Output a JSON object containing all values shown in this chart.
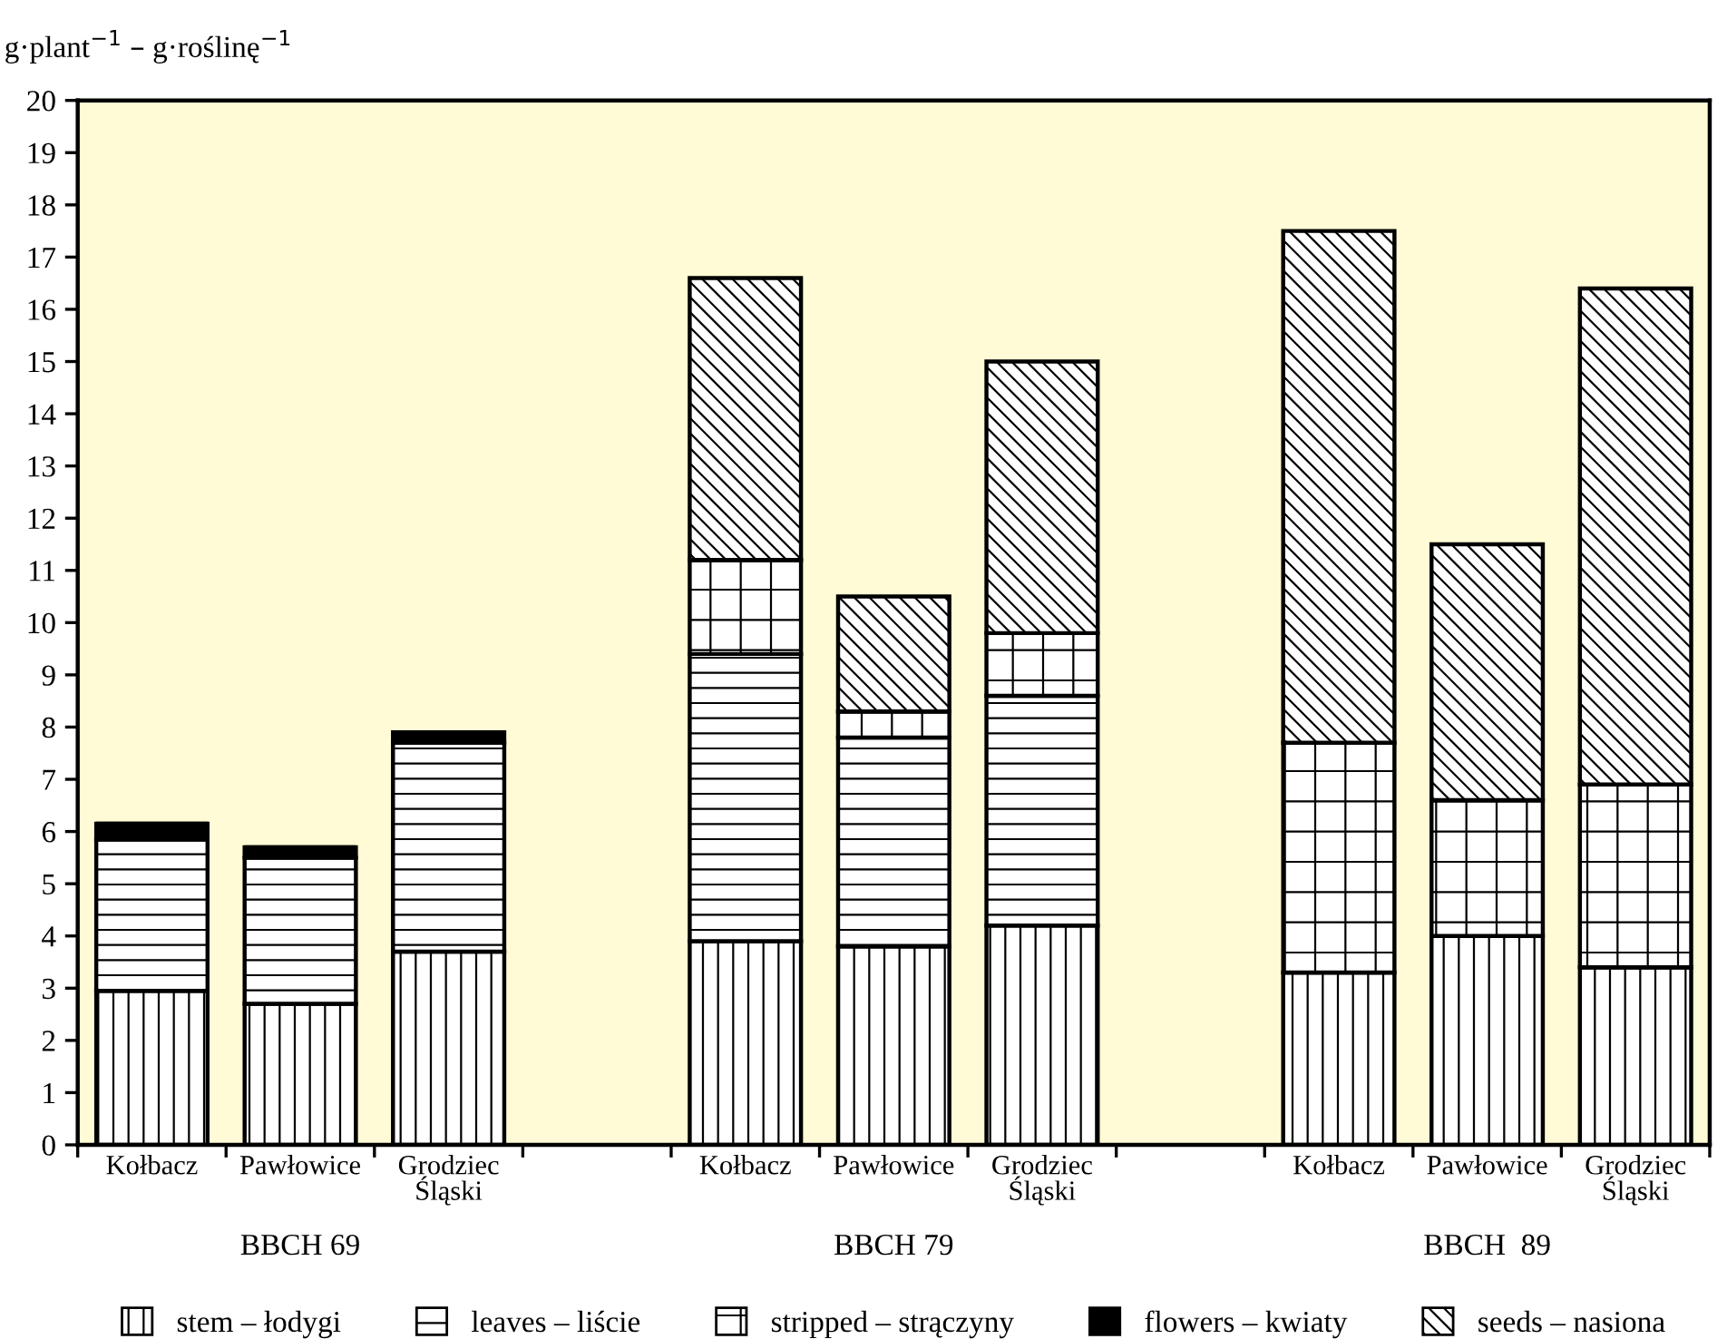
{
  "chart_data": {
    "type": "bar",
    "stacked": true,
    "ylabel": "g·plant$^{−1}$ – g·roślinę$^{−1}$",
    "categories": [
      "Kołbacz",
      "Pawłowice",
      "Grodziec\nŚląski",
      null,
      "Kołbacz",
      "Pawłowice",
      "Grodziec\nŚląski",
      null,
      "Kołbacz",
      "Pawłowice",
      "Grodziec\nŚląski"
    ],
    "annotations": [
      "BBCH 69",
      "BBCH 79",
      "BBCH  89"
    ],
    "series": [
      {
        "name": "stem – łodygi",
        "color": "#000000",
        "values": [
          2.95,
          2.7,
          3.7,
          null,
          3.9,
          3.8,
          4.2,
          null,
          3.3,
          4.0,
          3.4
        ]
      },
      {
        "name": "leaves – liście",
        "color": "#000000",
        "values": [
          2.9,
          2.8,
          4.0,
          null,
          5.5,
          4.0,
          4.4,
          null,
          0,
          0,
          0
        ]
      },
      {
        "name": "stripped – strączyny",
        "color": "#000000",
        "values": [
          0,
          0,
          0,
          null,
          1.8,
          0.5,
          1.2,
          null,
          4.4,
          2.6,
          3.5
        ]
      },
      {
        "name": "flowers – kwiaty",
        "color": "#000000",
        "values": [
          0.3,
          0.2,
          0.2,
          null,
          0,
          0,
          0,
          null,
          0,
          0,
          0
        ]
      },
      {
        "name": "seeds – nasiona",
        "color": "#000000",
        "values": [
          0,
          0,
          0,
          null,
          5.4,
          2.2,
          5.2,
          null,
          9.8,
          4.9,
          9.5
        ]
      }
    ],
    "ylim": [
      0,
      20
    ],
    "yticks": [
      0,
      1,
      2,
      3,
      4,
      5,
      6,
      7,
      8,
      9,
      10,
      11,
      12,
      13,
      14,
      15,
      16,
      17,
      18,
      19,
      20
    ],
    "grid": false,
    "legend": "bottom"
  }
}
